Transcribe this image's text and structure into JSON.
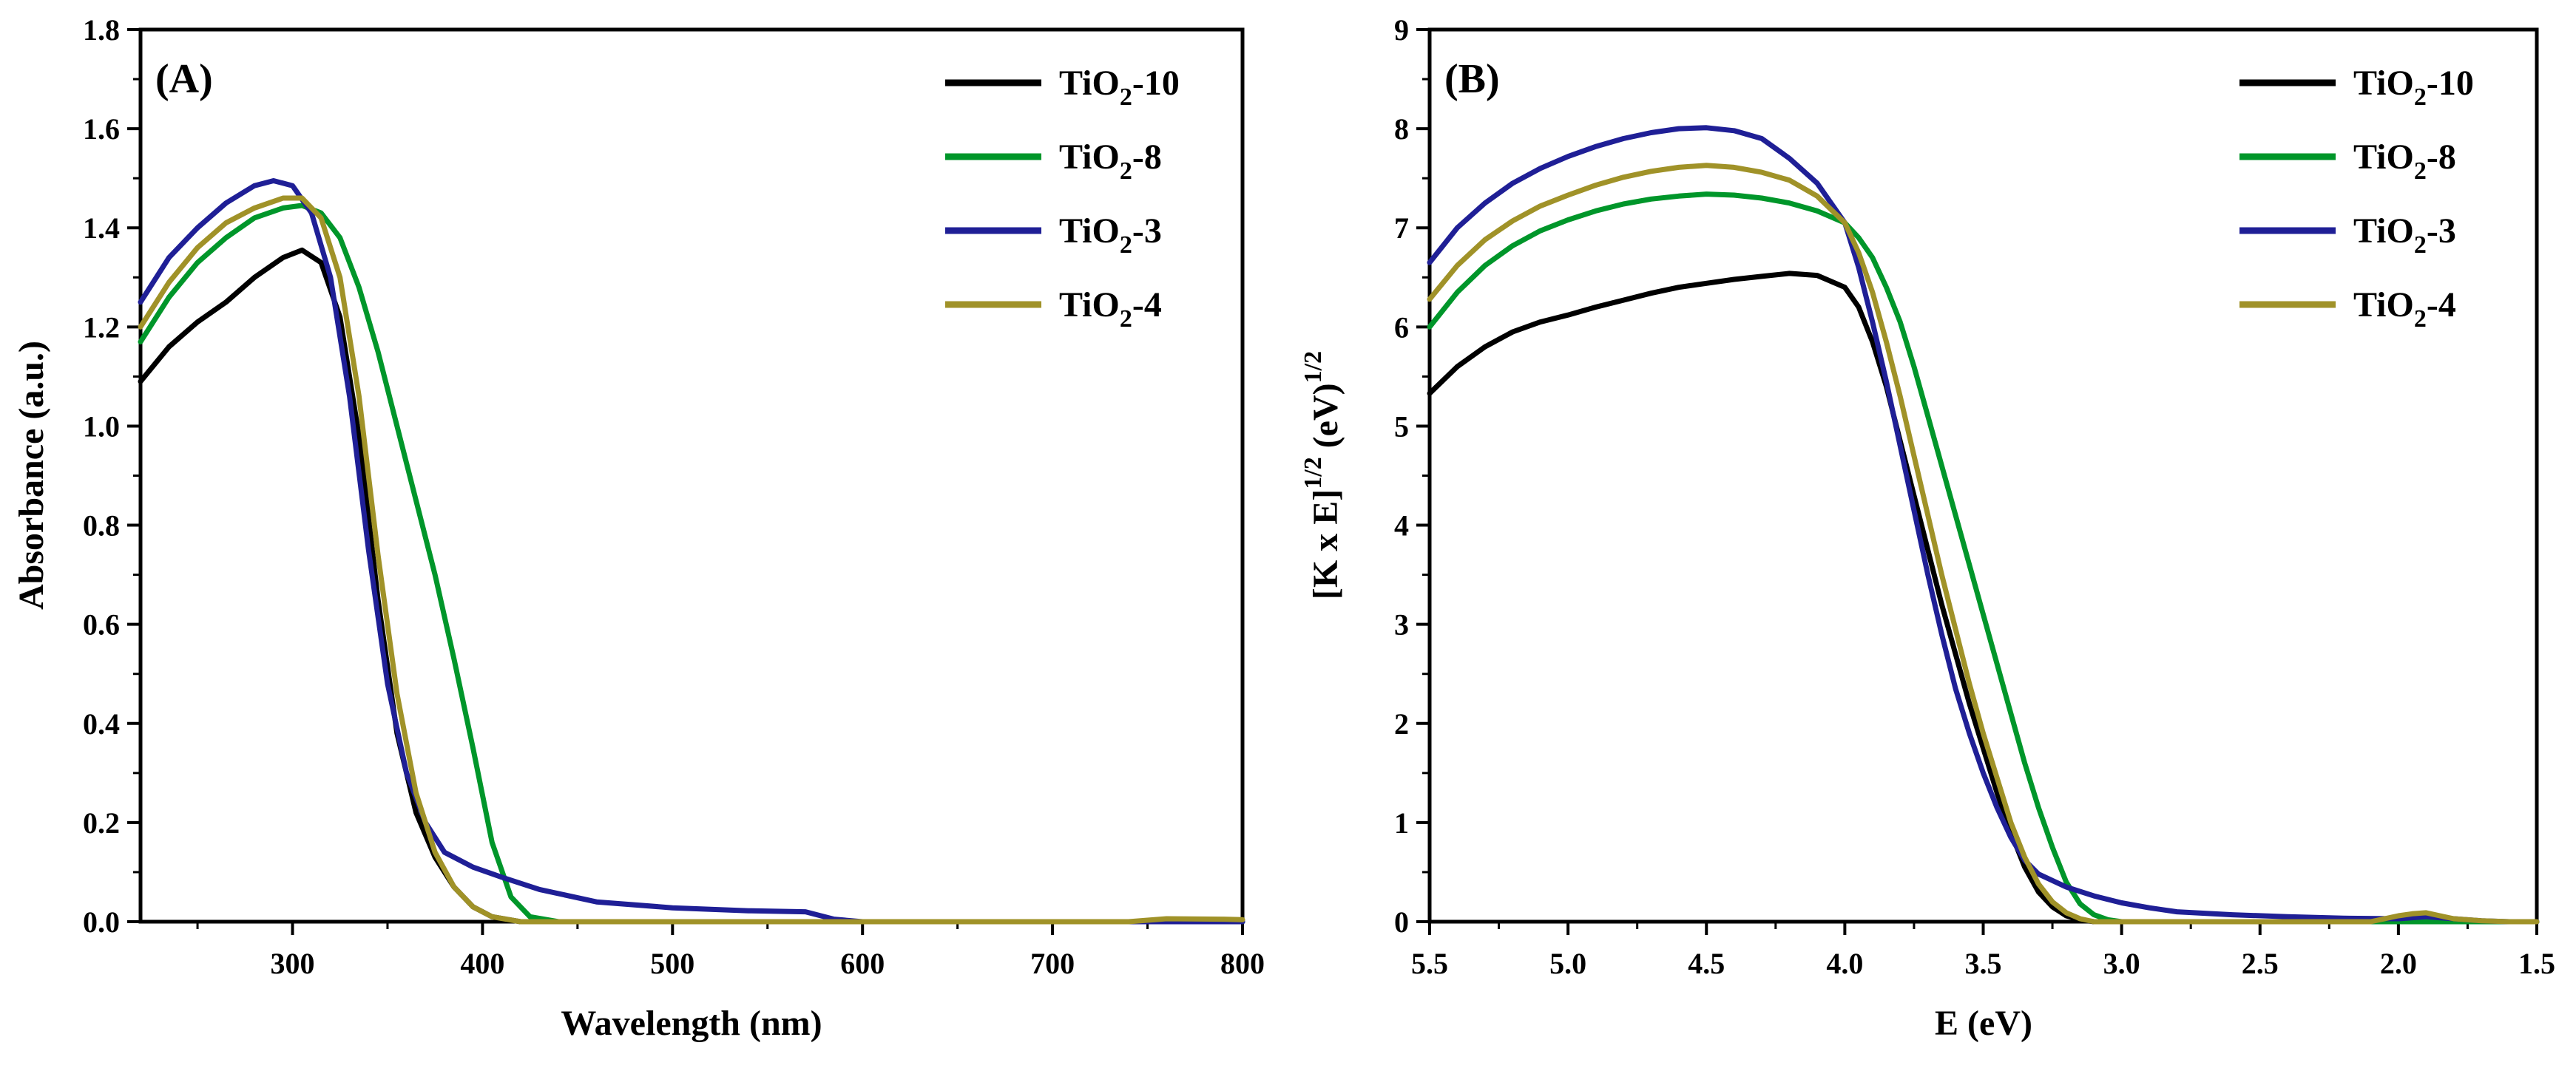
{
  "chart_data": [
    {
      "type": "line",
      "panel_label": "(A)",
      "xlabel": "Wavelength (nm)",
      "ylabel": "Absorbance (a.u.)",
      "xlim": [
        220,
        800
      ],
      "ylim": [
        0,
        1.8
      ],
      "x_reversed": false,
      "xticks": [
        300,
        400,
        500,
        600,
        700,
        800
      ],
      "xtick_labels": [
        "300",
        "400",
        "500",
        "600",
        "700",
        "800"
      ],
      "yticks": [
        0,
        0.2,
        0.4,
        0.6,
        0.8,
        1.0,
        1.2,
        1.4,
        1.6,
        1.8
      ],
      "ytick_labels": [
        "0.0",
        "0.2",
        "0.4",
        "0.6",
        "0.8",
        "1.0",
        "1.2",
        "1.4",
        "1.6",
        "1.8"
      ],
      "legend_position": "top-right",
      "series": [
        {
          "name": "TiO2-10",
          "label_main": "TiO",
          "label_sub": "2",
          "label_suffix": "-10",
          "color": "#000000",
          "points": [
            [
              220,
              1.09
            ],
            [
              235,
              1.16
            ],
            [
              250,
              1.21
            ],
            [
              265,
              1.25
            ],
            [
              280,
              1.3
            ],
            [
              295,
              1.34
            ],
            [
              305,
              1.355
            ],
            [
              315,
              1.33
            ],
            [
              325,
              1.22
            ],
            [
              335,
              0.98
            ],
            [
              345,
              0.65
            ],
            [
              355,
              0.38
            ],
            [
              365,
              0.22
            ],
            [
              375,
              0.13
            ],
            [
              385,
              0.07
            ],
            [
              395,
              0.03
            ],
            [
              405,
              0.01
            ],
            [
              420,
              0.0
            ],
            [
              800,
              0.0
            ]
          ]
        },
        {
          "name": "TiO2-8",
          "label_main": "TiO",
          "label_sub": "2",
          "label_suffix": "-8",
          "color": "#00962a",
          "points": [
            [
              220,
              1.17
            ],
            [
              235,
              1.26
            ],
            [
              250,
              1.33
            ],
            [
              265,
              1.38
            ],
            [
              280,
              1.42
            ],
            [
              295,
              1.44
            ],
            [
              305,
              1.445
            ],
            [
              315,
              1.43
            ],
            [
              325,
              1.38
            ],
            [
              335,
              1.28
            ],
            [
              345,
              1.15
            ],
            [
              355,
              1.0
            ],
            [
              365,
              0.85
            ],
            [
              375,
              0.7
            ],
            [
              385,
              0.53
            ],
            [
              395,
              0.35
            ],
            [
              405,
              0.16
            ],
            [
              415,
              0.05
            ],
            [
              425,
              0.01
            ],
            [
              440,
              0.0
            ],
            [
              800,
              0.0
            ]
          ]
        },
        {
          "name": "TiO2-3",
          "label_main": "TiO",
          "label_sub": "2",
          "label_suffix": "-3",
          "color": "#1f1f96",
          "points": [
            [
              220,
              1.25
            ],
            [
              235,
              1.34
            ],
            [
              250,
              1.4
            ],
            [
              265,
              1.45
            ],
            [
              280,
              1.485
            ],
            [
              290,
              1.495
            ],
            [
              300,
              1.485
            ],
            [
              310,
              1.43
            ],
            [
              320,
              1.3
            ],
            [
              330,
              1.06
            ],
            [
              340,
              0.75
            ],
            [
              350,
              0.48
            ],
            [
              360,
              0.3
            ],
            [
              370,
              0.2
            ],
            [
              380,
              0.14
            ],
            [
              395,
              0.11
            ],
            [
              410,
              0.09
            ],
            [
              430,
              0.065
            ],
            [
              460,
              0.04
            ],
            [
              500,
              0.028
            ],
            [
              540,
              0.022
            ],
            [
              570,
              0.02
            ],
            [
              585,
              0.005
            ],
            [
              600,
              0.0
            ],
            [
              800,
              0.0
            ]
          ]
        },
        {
          "name": "TiO2-4",
          "label_main": "TiO",
          "label_sub": "2",
          "label_suffix": "-4",
          "color": "#a09228",
          "points": [
            [
              220,
              1.2
            ],
            [
              235,
              1.29
            ],
            [
              250,
              1.36
            ],
            [
              265,
              1.41
            ],
            [
              280,
              1.44
            ],
            [
              295,
              1.46
            ],
            [
              305,
              1.46
            ],
            [
              315,
              1.42
            ],
            [
              325,
              1.3
            ],
            [
              335,
              1.06
            ],
            [
              345,
              0.74
            ],
            [
              355,
              0.46
            ],
            [
              365,
              0.26
            ],
            [
              375,
              0.14
            ],
            [
              385,
              0.07
            ],
            [
              395,
              0.03
            ],
            [
              405,
              0.01
            ],
            [
              420,
              0.0
            ],
            [
              740,
              0.0
            ],
            [
              760,
              0.006
            ],
            [
              790,
              0.005
            ],
            [
              800,
              0.004
            ]
          ]
        }
      ]
    },
    {
      "type": "line",
      "panel_label": "(B)",
      "xlabel": "E (eV)",
      "ylabel_main": "[K x E]",
      "ylabel_sup1": "1/2",
      "ylabel_mid": " (eV)",
      "ylabel_sup2": "1/2",
      "xlim": [
        5.5,
        1.5
      ],
      "ylim": [
        0,
        9
      ],
      "x_reversed": true,
      "xticks": [
        5.5,
        5.0,
        4.5,
        4.0,
        3.5,
        3.0,
        2.5,
        2.0,
        1.5
      ],
      "xtick_labels": [
        "5.5",
        "5.0",
        "4.5",
        "4.0",
        "3.5",
        "3.0",
        "2.5",
        "2.0",
        "1.5"
      ],
      "yticks": [
        0,
        1,
        2,
        3,
        4,
        5,
        6,
        7,
        8,
        9
      ],
      "ytick_labels": [
        "0",
        "1",
        "2",
        "3",
        "4",
        "5",
        "6",
        "7",
        "8",
        "9"
      ],
      "legend_position": "top-right",
      "series": [
        {
          "name": "TiO2-10",
          "label_main": "TiO",
          "label_sub": "2",
          "label_suffix": "-10",
          "color": "#000000",
          "points": [
            [
              5.5,
              5.33
            ],
            [
              5.4,
              5.6
            ],
            [
              5.3,
              5.8
            ],
            [
              5.2,
              5.95
            ],
            [
              5.1,
              6.05
            ],
            [
              5.0,
              6.12
            ],
            [
              4.9,
              6.2
            ],
            [
              4.8,
              6.27
            ],
            [
              4.7,
              6.34
            ],
            [
              4.6,
              6.4
            ],
            [
              4.5,
              6.44
            ],
            [
              4.4,
              6.48
            ],
            [
              4.3,
              6.51
            ],
            [
              4.2,
              6.54
            ],
            [
              4.1,
              6.52
            ],
            [
              4.0,
              6.4
            ],
            [
              3.95,
              6.2
            ],
            [
              3.9,
              5.85
            ],
            [
              3.85,
              5.4
            ],
            [
              3.8,
              4.85
            ],
            [
              3.75,
              4.3
            ],
            [
              3.7,
              3.75
            ],
            [
              3.65,
              3.2
            ],
            [
              3.6,
              2.7
            ],
            [
              3.55,
              2.2
            ],
            [
              3.5,
              1.75
            ],
            [
              3.45,
              1.3
            ],
            [
              3.4,
              0.9
            ],
            [
              3.35,
              0.55
            ],
            [
              3.3,
              0.3
            ],
            [
              3.25,
              0.15
            ],
            [
              3.2,
              0.06
            ],
            [
              3.15,
              0.02
            ],
            [
              3.1,
              0.0
            ],
            [
              1.5,
              0.0
            ]
          ]
        },
        {
          "name": "TiO2-8",
          "label_main": "TiO",
          "label_sub": "2",
          "label_suffix": "-8",
          "color": "#00962a",
          "points": [
            [
              5.5,
              6.0
            ],
            [
              5.4,
              6.35
            ],
            [
              5.3,
              6.62
            ],
            [
              5.2,
              6.82
            ],
            [
              5.1,
              6.97
            ],
            [
              5.0,
              7.08
            ],
            [
              4.9,
              7.17
            ],
            [
              4.8,
              7.24
            ],
            [
              4.7,
              7.29
            ],
            [
              4.6,
              7.32
            ],
            [
              4.5,
              7.34
            ],
            [
              4.4,
              7.33
            ],
            [
              4.3,
              7.3
            ],
            [
              4.2,
              7.25
            ],
            [
              4.1,
              7.17
            ],
            [
              4.0,
              7.05
            ],
            [
              3.95,
              6.9
            ],
            [
              3.9,
              6.7
            ],
            [
              3.85,
              6.4
            ],
            [
              3.8,
              6.05
            ],
            [
              3.75,
              5.6
            ],
            [
              3.7,
              5.1
            ],
            [
              3.65,
              4.6
            ],
            [
              3.6,
              4.1
            ],
            [
              3.55,
              3.6
            ],
            [
              3.5,
              3.1
            ],
            [
              3.45,
              2.6
            ],
            [
              3.4,
              2.1
            ],
            [
              3.35,
              1.6
            ],
            [
              3.3,
              1.15
            ],
            [
              3.25,
              0.75
            ],
            [
              3.2,
              0.4
            ],
            [
              3.15,
              0.18
            ],
            [
              3.1,
              0.07
            ],
            [
              3.05,
              0.02
            ],
            [
              3.0,
              0.0
            ],
            [
              1.5,
              0.0
            ]
          ]
        },
        {
          "name": "TiO2-3",
          "label_main": "TiO",
          "label_sub": "2",
          "label_suffix": "-3",
          "color": "#1f1f96",
          "points": [
            [
              5.5,
              6.65
            ],
            [
              5.4,
              7.0
            ],
            [
              5.3,
              7.25
            ],
            [
              5.2,
              7.45
            ],
            [
              5.1,
              7.6
            ],
            [
              5.0,
              7.72
            ],
            [
              4.9,
              7.82
            ],
            [
              4.8,
              7.9
            ],
            [
              4.7,
              7.96
            ],
            [
              4.6,
              8.0
            ],
            [
              4.5,
              8.01
            ],
            [
              4.4,
              7.98
            ],
            [
              4.3,
              7.9
            ],
            [
              4.2,
              7.7
            ],
            [
              4.1,
              7.45
            ],
            [
              4.0,
              7.05
            ],
            [
              3.95,
              6.6
            ],
            [
              3.9,
              6.05
            ],
            [
              3.85,
              5.45
            ],
            [
              3.8,
              4.8
            ],
            [
              3.75,
              4.15
            ],
            [
              3.7,
              3.5
            ],
            [
              3.65,
              2.9
            ],
            [
              3.6,
              2.35
            ],
            [
              3.55,
              1.9
            ],
            [
              3.5,
              1.5
            ],
            [
              3.45,
              1.15
            ],
            [
              3.4,
              0.85
            ],
            [
              3.35,
              0.62
            ],
            [
              3.3,
              0.48
            ],
            [
              3.2,
              0.35
            ],
            [
              3.1,
              0.26
            ],
            [
              3.0,
              0.19
            ],
            [
              2.9,
              0.14
            ],
            [
              2.8,
              0.1
            ],
            [
              2.6,
              0.07
            ],
            [
              2.4,
              0.05
            ],
            [
              2.2,
              0.035
            ],
            [
              2.0,
              0.03
            ],
            [
              1.9,
              0.05
            ],
            [
              1.8,
              0.03
            ],
            [
              1.7,
              0.01
            ],
            [
              1.6,
              0.0
            ],
            [
              1.5,
              0.0
            ]
          ]
        },
        {
          "name": "TiO2-4",
          "label_main": "TiO",
          "label_sub": "2",
          "label_suffix": "-4",
          "color": "#a09228",
          "points": [
            [
              5.5,
              6.28
            ],
            [
              5.4,
              6.62
            ],
            [
              5.3,
              6.88
            ],
            [
              5.2,
              7.07
            ],
            [
              5.1,
              7.22
            ],
            [
              5.0,
              7.33
            ],
            [
              4.9,
              7.43
            ],
            [
              4.8,
              7.51
            ],
            [
              4.7,
              7.57
            ],
            [
              4.6,
              7.61
            ],
            [
              4.5,
              7.63
            ],
            [
              4.4,
              7.61
            ],
            [
              4.3,
              7.56
            ],
            [
              4.2,
              7.48
            ],
            [
              4.1,
              7.32
            ],
            [
              4.0,
              7.05
            ],
            [
              3.95,
              6.75
            ],
            [
              3.9,
              6.35
            ],
            [
              3.85,
              5.85
            ],
            [
              3.8,
              5.3
            ],
            [
              3.75,
              4.7
            ],
            [
              3.7,
              4.1
            ],
            [
              3.65,
              3.5
            ],
            [
              3.6,
              2.95
            ],
            [
              3.55,
              2.4
            ],
            [
              3.5,
              1.9
            ],
            [
              3.45,
              1.45
            ],
            [
              3.4,
              1.0
            ],
            [
              3.35,
              0.65
            ],
            [
              3.3,
              0.38
            ],
            [
              3.25,
              0.2
            ],
            [
              3.2,
              0.09
            ],
            [
              3.15,
              0.03
            ],
            [
              3.1,
              0.0
            ],
            [
              2.1,
              0.0
            ],
            [
              2.0,
              0.06
            ],
            [
              1.95,
              0.08
            ],
            [
              1.9,
              0.09
            ],
            [
              1.85,
              0.06
            ],
            [
              1.8,
              0.03
            ],
            [
              1.7,
              0.01
            ],
            [
              1.6,
              0.0
            ],
            [
              1.5,
              0.0
            ]
          ]
        }
      ]
    }
  ]
}
